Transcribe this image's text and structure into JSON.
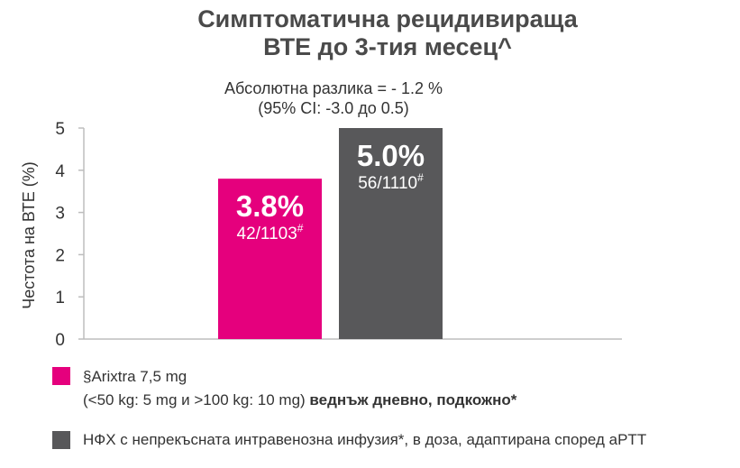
{
  "title_line1": "Симптоматична рецидивираща",
  "title_line2": "ВТЕ до 3-тия месец^",
  "subtitle_line1": "Абсолютна разлика = - 1.2 %",
  "subtitle_line2": "(95% CI: -3.0 до 0.5)",
  "colors": {
    "arixtra": "#e5007d",
    "nfh": "#58585a",
    "axis": "#bdbdbd",
    "text": "#333333"
  },
  "legend": {
    "item1_line1": "§Arixtra 7,5 mg",
    "item1_line2_plain": "(<50 kg: 5 mg и >100 kg: 10 mg) ",
    "item1_line2_bold": "веднъж дневно, подкожно*",
    "item2": "НФХ с непрекъсната интравенозна инфузия*, в доза, адаптирана според aPTT"
  },
  "chart_data": {
    "type": "bar",
    "title": "Симптоматична рецидивираща ВТЕ до 3-тия месец^",
    "ylabel": "Честота на ВТЕ (%)",
    "ylim": [
      0,
      5
    ],
    "yticks": [
      "0",
      "1",
      "2",
      "3",
      "4",
      "5"
    ],
    "grid": false,
    "bars": [
      {
        "value": 3.8,
        "label_pct": "3.8%",
        "label_frac": "42/1103",
        "sup": "#",
        "color": "#e5007d"
      },
      {
        "value": 5.0,
        "label_pct": "5.0%",
        "label_frac": "56/1110",
        "sup": "#",
        "color": "#58585a"
      }
    ]
  }
}
